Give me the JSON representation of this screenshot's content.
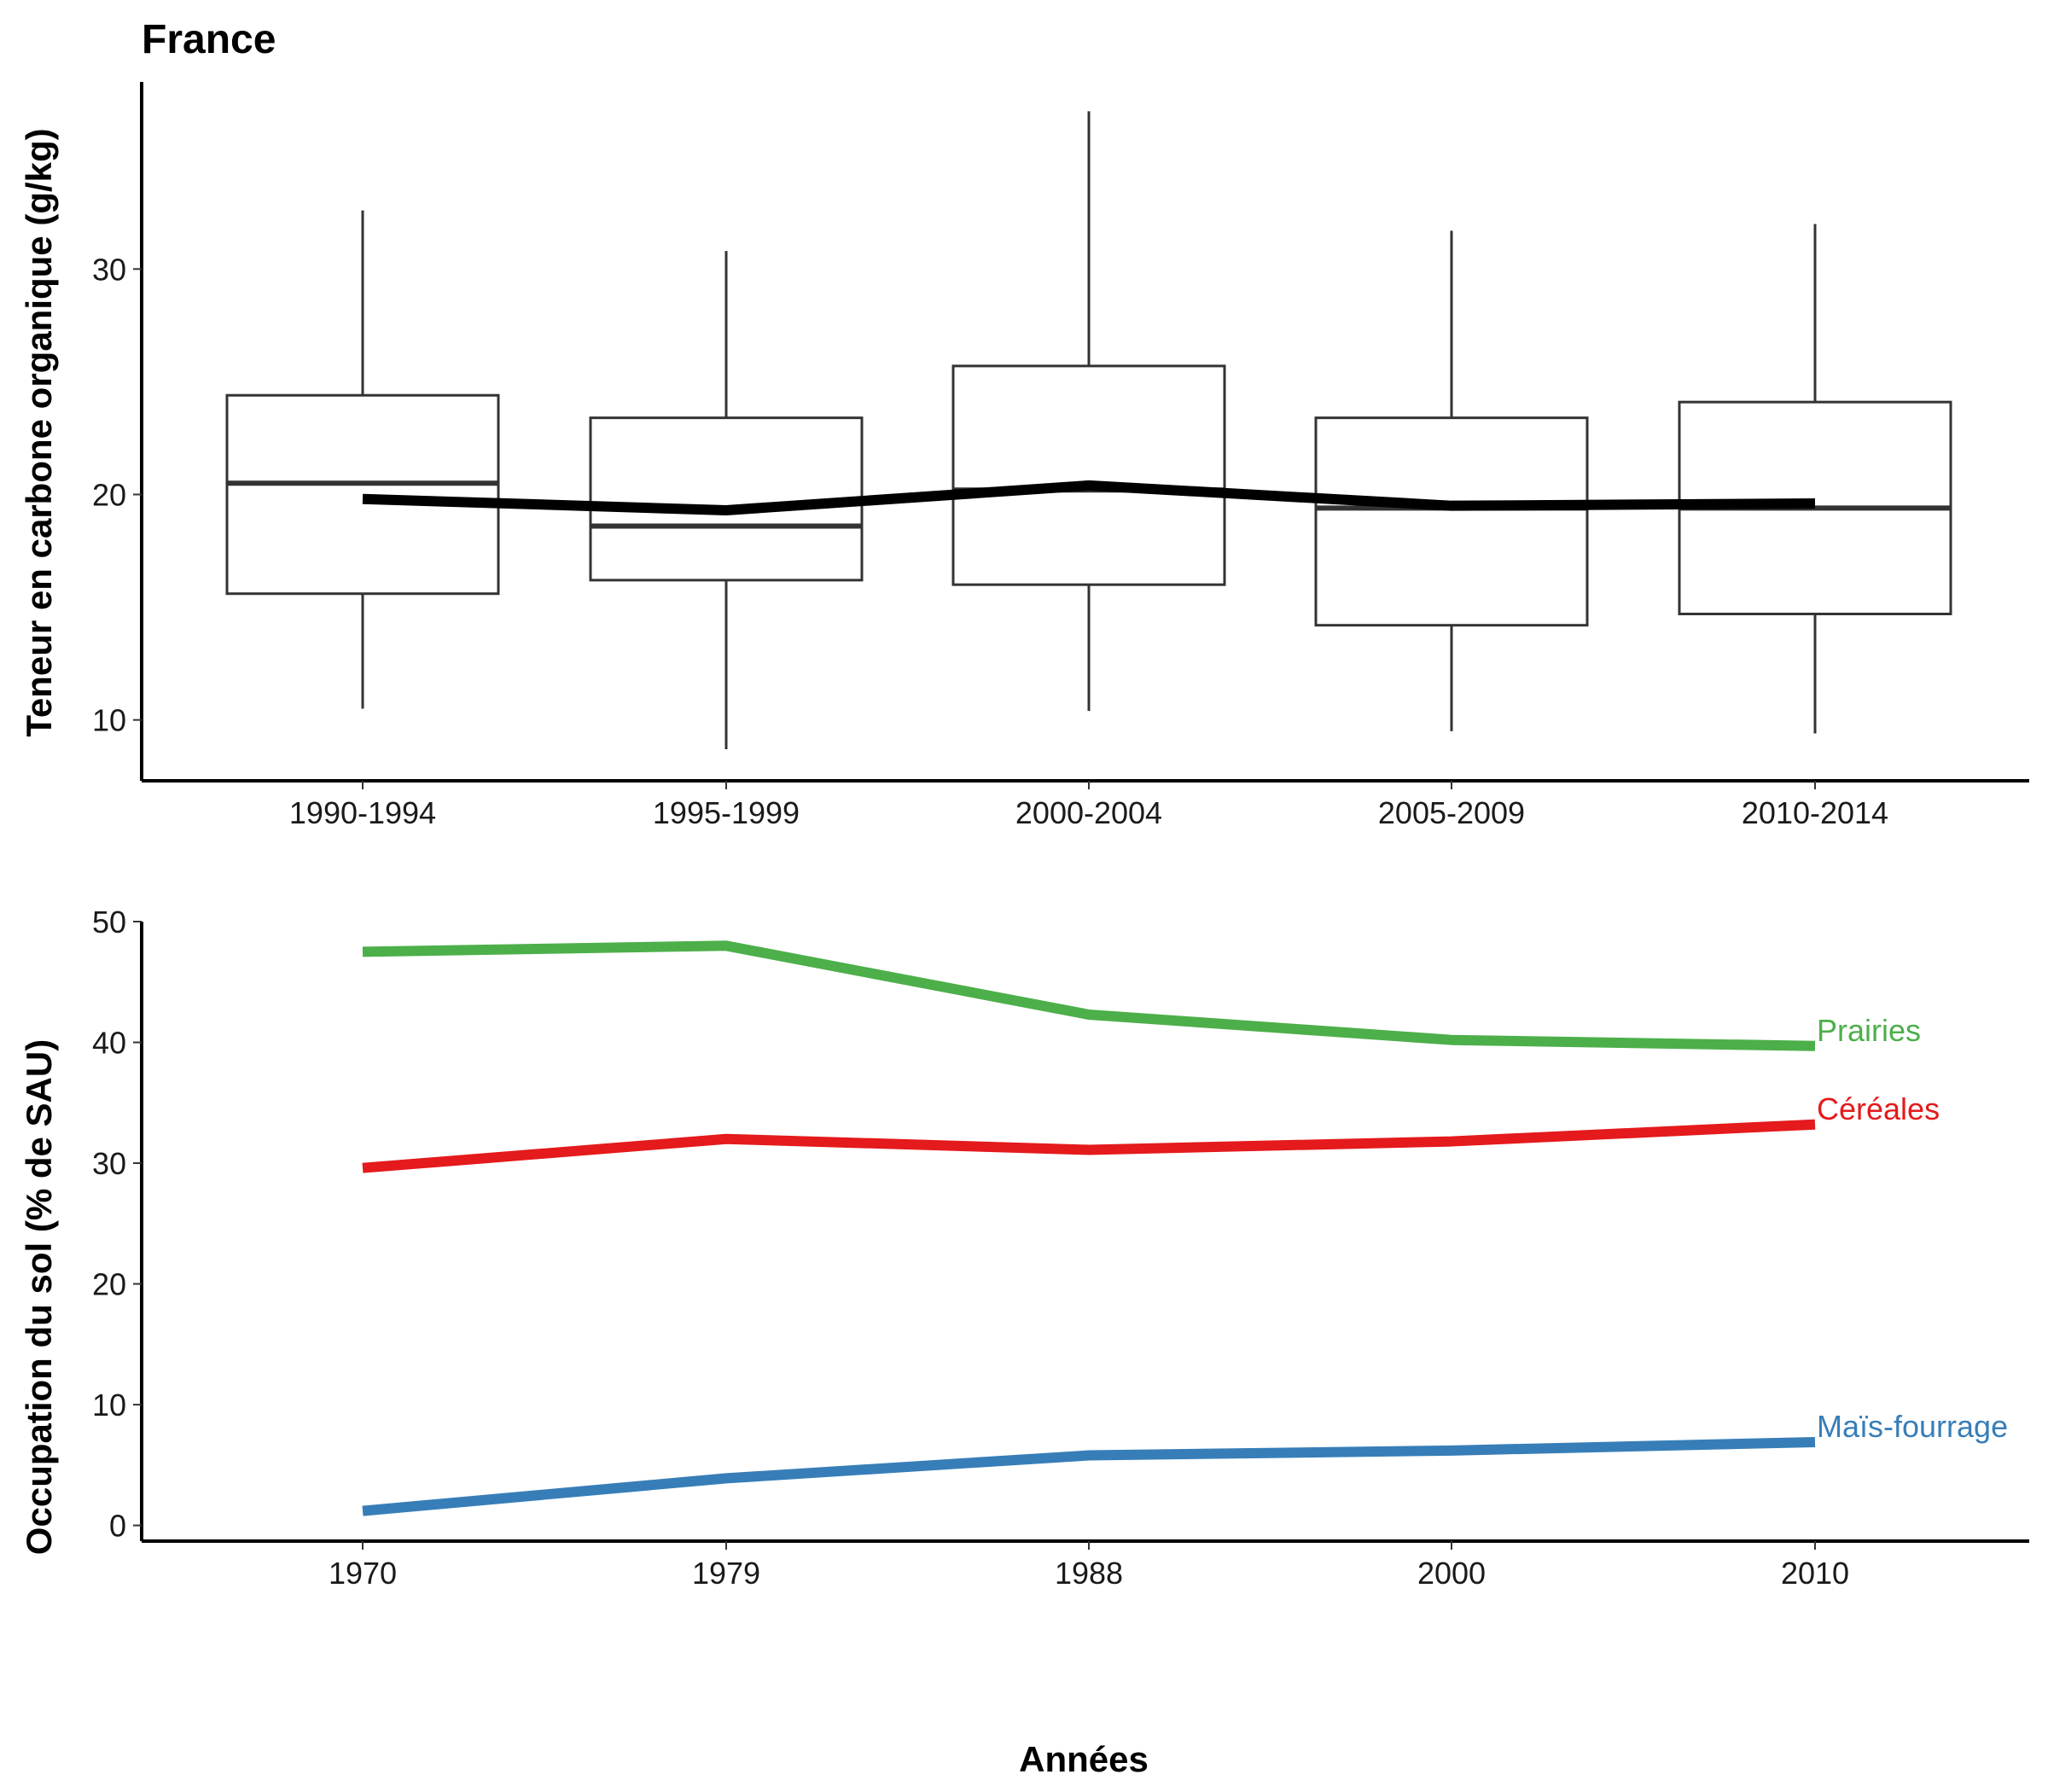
{
  "chart_data": [
    {
      "type": "box",
      "title": "France",
      "ylabel": "Teneur en carbone organique (g/kg)",
      "xlabel": "",
      "categories": [
        "1990-1994",
        "1995-1999",
        "2000-2004",
        "2005-2009",
        "2010-2014"
      ],
      "ylim": [
        7.3,
        38.3
      ],
      "yticks": [
        10,
        20,
        30
      ],
      "boxes": [
        {
          "min": 10.5,
          "q1": 15.6,
          "median": 20.5,
          "q3": 24.4,
          "max": 32.6
        },
        {
          "min": 8.7,
          "q1": 16.2,
          "median": 18.6,
          "q3": 23.4,
          "max": 30.8
        },
        {
          "min": 10.4,
          "q1": 16.0,
          "median": 20.2,
          "q3": 25.7,
          "max": 37.0
        },
        {
          "min": 9.5,
          "q1": 14.2,
          "median": 19.4,
          "q3": 23.4,
          "max": 31.7
        },
        {
          "min": 9.4,
          "q1": 14.7,
          "median": 19.4,
          "q3": 24.1,
          "max": 32.0
        }
      ],
      "trend": {
        "values": [
          19.8,
          19.3,
          20.4,
          19.5,
          19.6
        ],
        "color": "#000000"
      }
    },
    {
      "type": "line",
      "title": "",
      "ylabel": "Occupation du sol (% de SAU)",
      "xlabel": "Années",
      "categories": [
        "1970",
        "1979",
        "1988",
        "2000",
        "2010"
      ],
      "ylim": [
        -1.3,
        50
      ],
      "yticks": [
        0,
        10,
        20,
        30,
        40,
        50
      ],
      "series": [
        {
          "name": "Prairies",
          "color": "#4daf4a",
          "values": [
            47.5,
            48.0,
            42.3,
            40.2,
            39.7
          ]
        },
        {
          "name": "Céréales",
          "color": "#e41a1c",
          "values": [
            29.6,
            32.0,
            31.1,
            31.8,
            33.2
          ]
        },
        {
          "name": "Maïs-fourrage",
          "color": "#377eb8",
          "values": [
            1.2,
            3.9,
            5.8,
            6.2,
            6.9
          ]
        }
      ]
    }
  ]
}
